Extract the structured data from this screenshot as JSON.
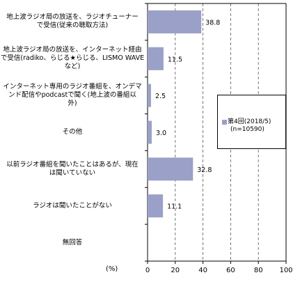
{
  "chart_data": {
    "type": "bar",
    "orientation": "horizontal",
    "categories": [
      "地上波ラジオ局の放送を、ラジオチューナーで受信(従来の聴取方法)",
      "地上波ラジオ局の放送を、インターネット経由で受信(radiko、らじる★らじる、LISMO WAVEなど)",
      "インターネット専用のラジオ番組を、オンデマンド配信やpodcastで聞く(地上波の番組以外)",
      "その他",
      "以前ラジオ番組を聞いたことはあるが、現在は聞いていない",
      "ラジオは聞いたことがない",
      "無回答"
    ],
    "category_lines": [
      [
        "地上波ラジオ局の放送を、ラジオチューナー",
        "で受信(従来の聴取方法)"
      ],
      [
        "地上波ラジオ局の放送を、インターネット経由",
        "で受信(radiko、らじる★らじる、LISMO WAVE",
        "など)"
      ],
      [
        "インターネット専用のラジオ番組を、オンデマ",
        "ンド配信やpodcastで聞く(地上波の番組以",
        "外)"
      ],
      [
        "その他"
      ],
      [
        "以前ラジオ番組を聞いたことはあるが、現在",
        "は聞いていない"
      ],
      [
        "ラジオは聞いたことがない"
      ],
      [
        "無回答"
      ]
    ],
    "series": [
      {
        "name": "第4回(2018/5)",
        "values": [
          38.8,
          11.5,
          2.5,
          3.0,
          32.8,
          11.1,
          null
        ],
        "labels": [
          "38.8",
          "11.5",
          "2.5",
          "3.0",
          "32.8",
          "11.1",
          ""
        ]
      }
    ],
    "legend": {
      "line1": "第4回(2018/5)",
      "line2": "(n=10590)",
      "placement": "right"
    },
    "xlim": [
      0,
      100
    ],
    "xticks": [
      0,
      20,
      40,
      60,
      80,
      100
    ],
    "xlabel": "(%)",
    "grid": "vertical dashed",
    "bar_color": "#9aa0c8"
  }
}
